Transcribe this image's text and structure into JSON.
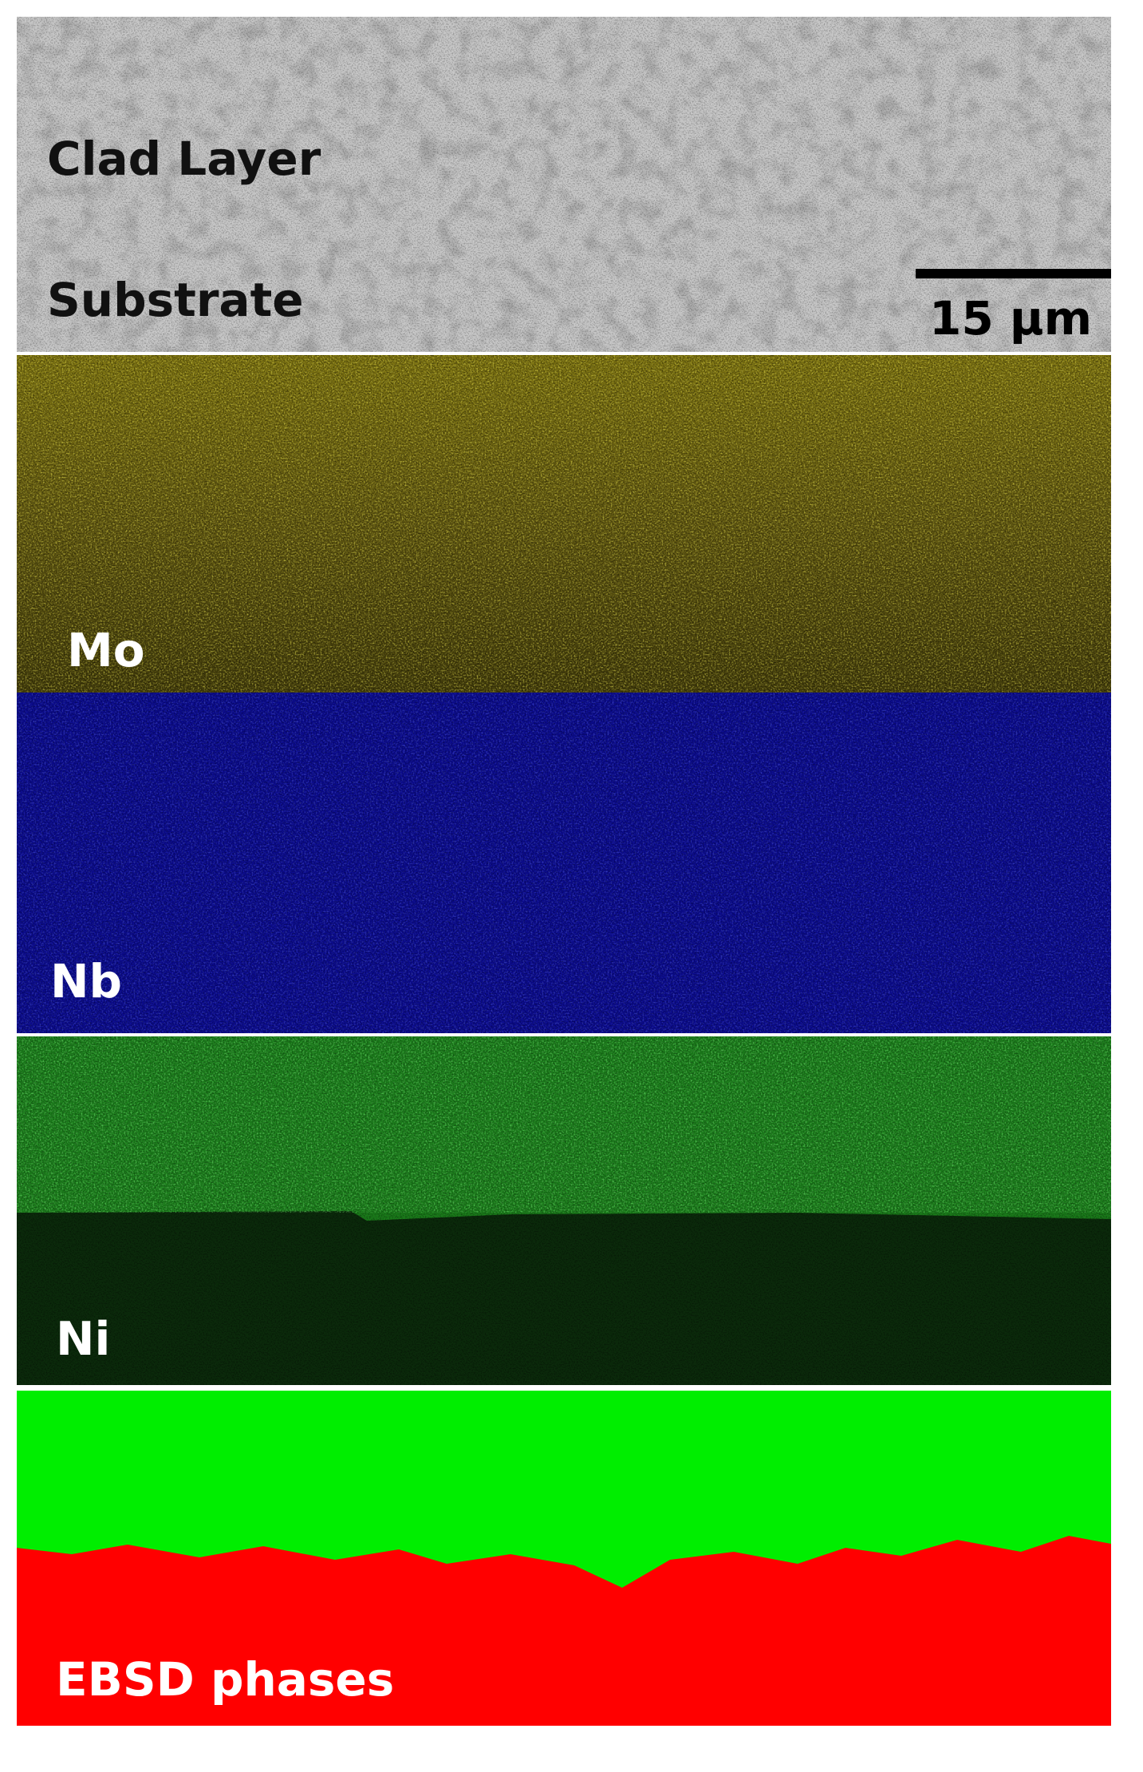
{
  "sem": {
    "labels": [
      "Clad Layer",
      "Substrate"
    ],
    "scale_bar": "15 μm"
  },
  "maps": [
    {
      "label": "Mo"
    },
    {
      "label": "Nb"
    },
    {
      "label": "Ni"
    },
    {
      "label": "EBSD phases"
    }
  ]
}
